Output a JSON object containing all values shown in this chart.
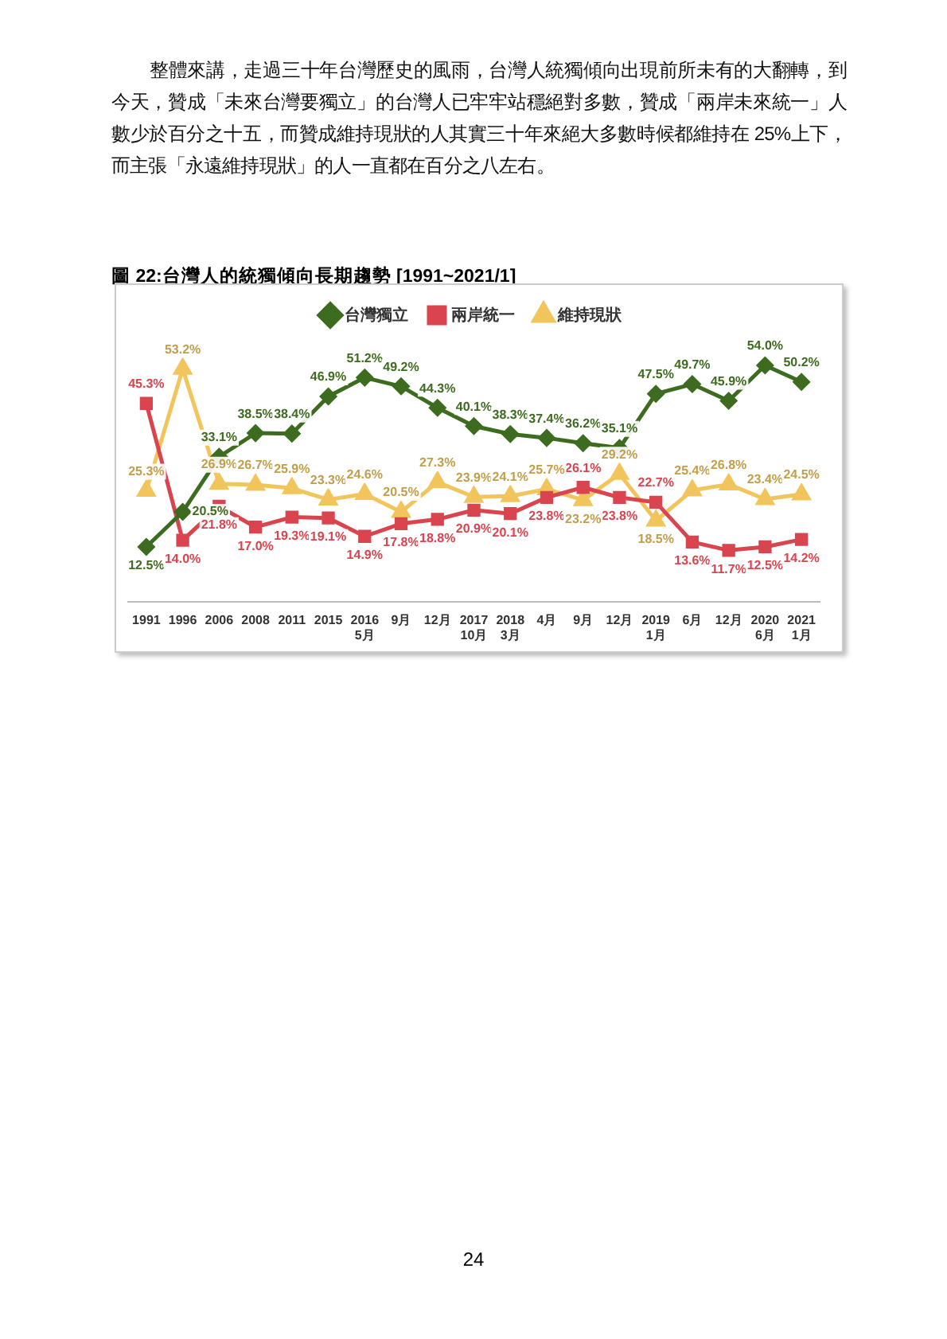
{
  "chart_data": {
    "type": "line",
    "title": "圖 22:台灣人的統獨傾向長期趨勢 [1991~2021/1]",
    "annotations": [
      "整體來講，走過三十年台灣歷史的風雨，台灣人統獨傾向出現前所未有的大翻轉，到今天，贊成「未來台灣要獨立」的台灣人已牢牢站穩絕對多數，贊成「兩岸未來統一」人數少於百分之十五，而贊成維持現狀的人其實三十年來絕大多數時候都維持在 25%上下，而主張「永遠維持現狀」的人一直都在百分之八左右。",
      "24"
    ],
    "categories": [
      "1991",
      "1996",
      "2006",
      "2008",
      "2011",
      "2015",
      "2016\n5月",
      "9月",
      "12月",
      "2017\n10月",
      "2018\n3月",
      "4月",
      "9月",
      "12月",
      "2019\n1月",
      "6月",
      "12月",
      "2020\n6月",
      "2021\n1月"
    ],
    "series": [
      {
        "name": "台灣獨立",
        "color": "#3d6b1f",
        "marker": "diamond",
        "values": [
          12.5,
          20.5,
          33.1,
          38.5,
          38.4,
          46.9,
          51.2,
          49.2,
          44.3,
          40.1,
          38.3,
          37.4,
          36.2,
          35.1,
          47.5,
          49.7,
          45.9,
          54.0,
          50.2
        ],
        "value_labels": [
          "12.5%",
          "20.5%",
          "33.1%",
          "38.5%",
          "38.4%",
          "46.9%",
          "51.2%",
          "49.2%",
          "44.3%",
          "40.1%",
          "38.3%",
          "37.4%",
          "36.2%",
          "35.1%",
          "47.5%",
          "49.7%",
          "45.9%",
          "54.0%",
          "50.2%"
        ]
      },
      {
        "name": "兩岸統一",
        "color": "#d9444e",
        "marker": "square",
        "values": [
          45.3,
          14.0,
          21.8,
          17.0,
          19.3,
          19.1,
          14.9,
          17.8,
          18.8,
          20.9,
          20.1,
          23.8,
          26.1,
          23.8,
          22.7,
          13.6,
          11.7,
          12.5,
          14.2
        ],
        "value_labels": [
          "45.3%",
          "14.0%",
          "21.8%",
          "17.0%",
          "19.3%",
          "19.1%",
          "14.9%",
          "17.8%",
          "18.8%",
          "20.9%",
          "20.1%",
          "23.8%",
          "26.1%",
          "23.8%",
          "22.7%",
          "13.6%",
          "11.7%",
          "12.5%",
          "14.2%"
        ]
      },
      {
        "name": "維持現狀",
        "color": "#f2c55c",
        "marker": "triangle",
        "values": [
          25.3,
          53.2,
          26.9,
          26.7,
          25.9,
          23.3,
          24.6,
          20.5,
          27.3,
          23.9,
          24.1,
          25.7,
          23.2,
          29.2,
          18.5,
          25.4,
          26.8,
          23.4,
          24.5
        ],
        "value_labels": [
          "25.3%",
          "53.2%",
          "26.9%",
          "26.7%",
          "25.9%",
          "23.3%",
          "24.6%",
          "20.5%",
          "27.3%",
          "23.9%",
          "24.1%",
          "25.7%",
          "23.2%",
          "29.2%",
          "18.5%",
          "25.4%",
          "26.8%",
          "23.4%",
          "24.5%"
        ]
      }
    ],
    "tick_labels": "x",
    "legend": "top"
  }
}
